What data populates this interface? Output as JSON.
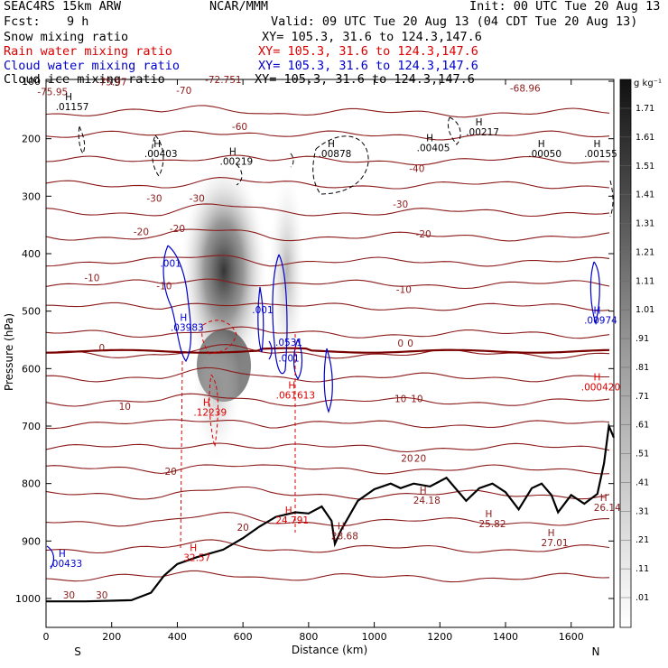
{
  "header": {
    "model": "SEAC4RS 15km ARW",
    "institution": "NCAR/MMM",
    "init": "Init: 00 UTC Tue 20 Aug 13",
    "fcst_label": "Fcst:",
    "fcst_value": "9 h",
    "valid": "Valid: 09 UTC Tue 20 Aug 13 (04 CDT Tue 20 Aug 13)",
    "lines": [
      {
        "field": "Snow mixing ratio",
        "xy": "XY= 105.3, 31.6 to 124.3,147.6",
        "color": "#000000"
      },
      {
        "field": "Rain water mixing ratio",
        "xy": "XY= 105.3, 31.6 to 124.3,147.6",
        "color": "#dd0000"
      },
      {
        "field": "Cloud water mixing ratio",
        "xy": "XY= 105.3, 31.6 to 124.3,147.6",
        "color": "#0000cc"
      },
      {
        "field": "Cloud ice mixing ratio",
        "xy": "XY= 105.3, 31.6 to 124.3,147.6",
        "color": "#000000"
      }
    ]
  },
  "chart_data": {
    "type": "cross-section contour",
    "xlabel": "Distance (km)",
    "ylabel": "Pressure (hPa)",
    "xlim": [
      0,
      1730
    ],
    "ylim": [
      1050,
      100
    ],
    "x_ticks": [
      0,
      200,
      400,
      600,
      800,
      1000,
      1200,
      1400,
      1600
    ],
    "y_ticks": [
      100,
      200,
      300,
      400,
      500,
      600,
      700,
      800,
      900,
      1000
    ],
    "x_end_labels": {
      "left": "S",
      "right": "N"
    },
    "colorbar": {
      "unit": "g kg⁻¹",
      "levels": [
        "1.71",
        "1.61",
        "1.51",
        "1.41",
        "1.31",
        "1.21",
        "1.11",
        "1.01",
        ".91",
        ".81",
        ".71",
        ".61",
        ".51",
        ".41",
        ".31",
        ".21",
        ".11",
        ".01"
      ]
    },
    "terrain": [
      [
        0,
        1005
      ],
      [
        120,
        1005
      ],
      [
        260,
        1003
      ],
      [
        320,
        990
      ],
      [
        360,
        960
      ],
      [
        400,
        940
      ],
      [
        460,
        928
      ],
      [
        540,
        915
      ],
      [
        600,
        895
      ],
      [
        650,
        875
      ],
      [
        700,
        858
      ],
      [
        760,
        850
      ],
      [
        800,
        852
      ],
      [
        840,
        840
      ],
      [
        870,
        865
      ],
      [
        880,
        905
      ],
      [
        900,
        880
      ],
      [
        950,
        830
      ],
      [
        1000,
        810
      ],
      [
        1050,
        800
      ],
      [
        1080,
        808
      ],
      [
        1120,
        800
      ],
      [
        1170,
        805
      ],
      [
        1220,
        790
      ],
      [
        1280,
        830
      ],
      [
        1320,
        808
      ],
      [
        1360,
        800
      ],
      [
        1400,
        815
      ],
      [
        1440,
        845
      ],
      [
        1480,
        808
      ],
      [
        1510,
        800
      ],
      [
        1540,
        820
      ],
      [
        1560,
        850
      ],
      [
        1600,
        820
      ],
      [
        1640,
        835
      ],
      [
        1680,
        818
      ],
      [
        1700,
        765
      ],
      [
        1715,
        700
      ],
      [
        1730,
        720
      ]
    ],
    "temperature_labels": [
      {
        "text": "-75.95",
        "x": 20,
        "p": 124
      },
      {
        "text": "-75.97",
        "x": 200,
        "p": 107
      },
      {
        "text": "-70",
        "x": 420,
        "p": 122
      },
      {
        "text": "-72.751",
        "x": 540,
        "p": 103
      },
      {
        "text": "-68.96",
        "x": 1460,
        "p": 118
      },
      {
        "text": "-60",
        "x": 590,
        "p": 185
      },
      {
        "text": "-40",
        "x": 1130,
        "p": 258
      },
      {
        "text": "-30",
        "x": 330,
        "p": 310
      },
      {
        "text": "-30",
        "x": 460,
        "p": 310
      },
      {
        "text": "-30",
        "x": 1080,
        "p": 320
      },
      {
        "text": "-20",
        "x": 290,
        "p": 368
      },
      {
        "text": "-20",
        "x": 400,
        "p": 362
      },
      {
        "text": "-20",
        "x": 1150,
        "p": 372
      },
      {
        "text": "-10",
        "x": 140,
        "p": 448
      },
      {
        "text": "-10",
        "x": 360,
        "p": 462
      },
      {
        "text": "-10",
        "x": 1090,
        "p": 468
      },
      {
        "text": "0",
        "x": 170,
        "p": 570
      },
      {
        "text": "0",
        "x": 1080,
        "p": 562
      },
      {
        "text": "0",
        "x": 1110,
        "p": 562
      },
      {
        "text": "10",
        "x": 240,
        "p": 672
      },
      {
        "text": "10",
        "x": 1080,
        "p": 658
      },
      {
        "text": "10",
        "x": 1130,
        "p": 658
      },
      {
        "text": "20",
        "x": 380,
        "p": 785
      },
      {
        "text": "20",
        "x": 1100,
        "p": 762
      },
      {
        "text": "20",
        "x": 1140,
        "p": 762
      },
      {
        "text": "20",
        "x": 600,
        "p": 882
      },
      {
        "text": "30",
        "x": 70,
        "p": 1000
      },
      {
        "text": "30",
        "x": 170,
        "p": 1000
      }
    ],
    "snow_maxima": [
      {
        "text": ".01157",
        "x": 80,
        "p": 150
      },
      {
        "text": ".00403",
        "x": 350,
        "p": 232
      },
      {
        "text": ".00219",
        "x": 580,
        "p": 245
      },
      {
        "text": ".00878",
        "x": 880,
        "p": 232
      },
      {
        "text": ".00405",
        "x": 1180,
        "p": 222
      },
      {
        "text": ".00217",
        "x": 1330,
        "p": 194
      },
      {
        "text": ".00050",
        "x": 1520,
        "p": 232
      },
      {
        "text": ".00155",
        "x": 1690,
        "p": 232
      }
    ],
    "rain_maxima": [
      {
        "text": ".12239",
        "x": 500,
        "p": 682
      },
      {
        "text": ".061613",
        "x": 760,
        "p": 652
      },
      {
        "text": "24.791",
        "x": 750,
        "p": 870
      },
      {
        "text": "32.57",
        "x": 460,
        "p": 935
      },
      {
        "text": ".000420",
        "x": 1690,
        "p": 638
      }
    ],
    "cloud_water_maxima": [
      {
        "text": ".001",
        "x": 380,
        "p": 423
      },
      {
        "text": ".03983",
        "x": 430,
        "p": 534
      },
      {
        "text": ".001",
        "x": 660,
        "p": 504
      },
      {
        "text": ".0531",
        "x": 740,
        "p": 560
      },
      {
        "text": ".001",
        "x": 740,
        "p": 588
      },
      {
        "text": ".00974",
        "x": 1690,
        "p": 522
      },
      {
        "text": ".00433",
        "x": 60,
        "p": 945
      }
    ],
    "terrain_temperature_labels": [
      {
        "text": "24.18",
        "x": 1160,
        "p": 835
      },
      {
        "text": "25.82",
        "x": 1360,
        "p": 876
      },
      {
        "text": "27.01",
        "x": 1550,
        "p": 909
      },
      {
        "text": "26.14",
        "x": 1710,
        "p": 848
      },
      {
        "text": "28.68",
        "x": 910,
        "p": 897
      }
    ]
  },
  "colors": {
    "temperature": "#8b1a1a",
    "freezing_line": "#7a0000",
    "snow": "#000000",
    "rain": "#dd0000",
    "cloud_water": "#0000cc",
    "terrain": "#000000"
  }
}
